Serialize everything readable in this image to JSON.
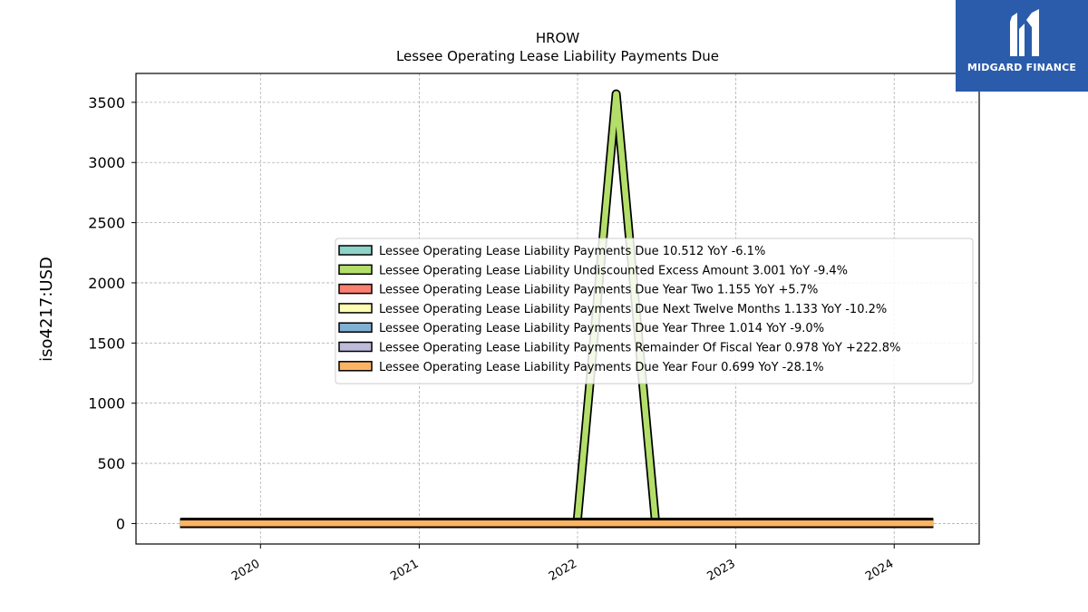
{
  "logo": {
    "text": "MIDGARD FINANCE"
  },
  "chart_data": {
    "type": "line",
    "title": "HROW",
    "subtitle": "Lessee Operating Lease Liability Payments Due",
    "ylabel": "iso4217:USD",
    "xlabel": "",
    "ylim": [
      -170,
      3740
    ],
    "yticks": [
      0,
      500,
      1000,
      1500,
      2000,
      2500,
      3000,
      3500
    ],
    "xlim": [
      "2019-03-20",
      "2024-07-15"
    ],
    "xticks": [
      "2020",
      "2021",
      "2022",
      "2023",
      "2024"
    ],
    "grid": true,
    "legend_position": "center-right",
    "series": [
      {
        "name": "Lessee Operating Lease Liability Payments Due",
        "legend_label": "Lessee Operating Lease Liability Payments Due  10.512 YoY -6.1%",
        "color": "#8dd3c7",
        "x": [
          "2019-06-30",
          "2024-03-31"
        ],
        "y": [
          11,
          10.5
        ]
      },
      {
        "name": "Lessee Operating Lease Liability Undiscounted Excess Amount",
        "legend_label": "Lessee Operating Lease Liability Undiscounted Excess Amount  3.001 YoY -9.4%",
        "color": "#b3de69",
        "x": [
          "2019-06-30",
          "2021-12-31",
          "2022-03-31",
          "2022-06-30",
          "2024-03-31"
        ],
        "y": [
          3,
          3,
          3570,
          3,
          3
        ]
      },
      {
        "name": "Lessee Operating Lease Liability Payments Due Year Two",
        "legend_label": "Lessee Operating Lease Liability Payments Due Year Two  1.155 YoY +5.7%",
        "color": "#fb8072",
        "x": [
          "2019-06-30",
          "2024-03-31"
        ],
        "y": [
          1.1,
          1.155
        ]
      },
      {
        "name": "Lessee Operating Lease Liability Payments Due Next Twelve Months",
        "legend_label": "Lessee Operating Lease Liability Payments Due Next Twelve Months  1.133 YoY -10.2%",
        "color": "#ffffb3",
        "x": [
          "2019-06-30",
          "2024-03-31"
        ],
        "y": [
          1.2,
          1.133
        ]
      },
      {
        "name": "Lessee Operating Lease Liability Payments Due Year Three",
        "legend_label": "Lessee Operating Lease Liability Payments Due Year Three  1.014 YoY -9.0%",
        "color": "#80b1d3",
        "x": [
          "2019-06-30",
          "2024-03-31"
        ],
        "y": [
          1.1,
          1.014
        ]
      },
      {
        "name": "Lessee Operating Lease Liability Payments Remainder Of Fiscal Year",
        "legend_label": "Lessee Operating Lease Liability Payments Remainder Of Fiscal Year  0.978 YoY +222.8%",
        "color": "#bebada",
        "x": [
          "2019-06-30",
          "2024-03-31"
        ],
        "y": [
          0.3,
          0.978
        ]
      },
      {
        "name": "Lessee Operating Lease Liability Payments Due Year Four",
        "legend_label": "Lessee Operating Lease Liability Payments Due Year Four  0.699 YoY -28.1%",
        "color": "#fdb462",
        "x": [
          "2019-06-30",
          "2024-03-31"
        ],
        "y": [
          0.97,
          0.699
        ]
      }
    ]
  }
}
